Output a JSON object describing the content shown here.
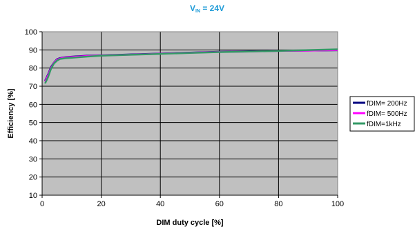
{
  "chart_data": {
    "type": "line",
    "title": {
      "main": "V",
      "sub": "IN",
      "rest": " = 24V"
    },
    "title_color": "#1e9bd7",
    "xlabel": "DIM duty cycle  [%]",
    "ylabel": "Efficiency  [%]",
    "xlim": [
      0,
      100
    ],
    "ylim": [
      10,
      100
    ],
    "xticks": [
      "0",
      "20",
      "40",
      "60",
      "80",
      "100"
    ],
    "yticks": [
      "10",
      "20",
      "30",
      "40",
      "50",
      "60",
      "70",
      "80",
      "90",
      "100"
    ],
    "grid": true,
    "plot_background": "#c0c0c0",
    "legend_position": "right",
    "series": [
      {
        "name": "fDIM= 200Hz",
        "color": "#000080",
        "x": [
          1,
          2,
          3,
          4,
          5,
          6,
          8,
          10,
          15,
          20,
          30,
          40,
          50,
          60,
          70,
          80,
          90,
          100
        ],
        "y": [
          73,
          76.5,
          80.5,
          83,
          84.8,
          85.5,
          86,
          86.3,
          86.8,
          87,
          87.5,
          88,
          88.5,
          89,
          89.2,
          89.5,
          89.6,
          89.8
        ]
      },
      {
        "name": "fDIM= 500Hz",
        "color": "#ff00ff",
        "x": [
          1,
          2,
          3,
          4,
          5,
          6,
          8,
          10,
          15,
          20,
          30,
          40,
          50,
          60,
          70,
          80,
          90,
          100
        ],
        "y": [
          72.5,
          76,
          80,
          82.8,
          84.5,
          85.3,
          85.8,
          86.1,
          86.6,
          86.9,
          87.4,
          87.9,
          88.4,
          88.9,
          89.1,
          89.4,
          89.6,
          89.9
        ]
      },
      {
        "name": "fDIM=1kHz",
        "color": "#339966",
        "x": [
          1,
          2,
          3,
          4,
          5,
          6,
          8,
          10,
          15,
          20,
          30,
          40,
          50,
          60,
          70,
          80,
          90,
          100
        ],
        "y": [
          71.5,
          75,
          79.5,
          82.5,
          84,
          85,
          85.4,
          85.7,
          86.3,
          86.8,
          87.3,
          87.8,
          88.3,
          88.8,
          89.1,
          89.4,
          89.9,
          90.3
        ]
      }
    ]
  }
}
